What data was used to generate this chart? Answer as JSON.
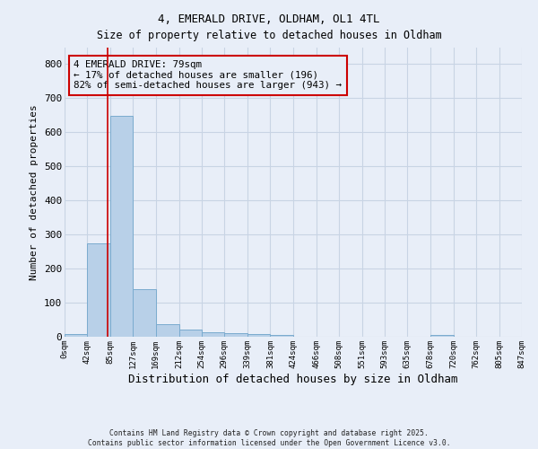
{
  "title": "4, EMERALD DRIVE, OLDHAM, OL1 4TL",
  "subtitle": "Size of property relative to detached houses in Oldham",
  "xlabel": "Distribution of detached houses by size in Oldham",
  "ylabel": "Number of detached properties",
  "bar_values": [
    8,
    275,
    648,
    140,
    38,
    20,
    12,
    10,
    8,
    5,
    0,
    0,
    0,
    0,
    0,
    0,
    4,
    0,
    0,
    0
  ],
  "bin_edges": [
    0,
    42,
    85,
    127,
    169,
    212,
    254,
    296,
    339,
    381,
    424,
    466,
    508,
    551,
    593,
    635,
    678,
    720,
    762,
    805,
    847
  ],
  "tick_labels": [
    "0sqm",
    "42sqm",
    "85sqm",
    "127sqm",
    "169sqm",
    "212sqm",
    "254sqm",
    "296sqm",
    "339sqm",
    "381sqm",
    "424sqm",
    "466sqm",
    "508sqm",
    "551sqm",
    "593sqm",
    "635sqm",
    "678sqm",
    "720sqm",
    "762sqm",
    "805sqm",
    "847sqm"
  ],
  "bar_color": "#b8d0e8",
  "bar_edge_color": "#7aabcf",
  "property_line_x": 79,
  "property_line_color": "#cc0000",
  "annotation_line1": "4 EMERALD DRIVE: 79sqm",
  "annotation_line2": "← 17% of detached houses are smaller (196)",
  "annotation_line3": "82% of semi-detached houses are larger (943) →",
  "annotation_box_color": "#cc0000",
  "ylim": [
    0,
    850
  ],
  "yticks": [
    0,
    100,
    200,
    300,
    400,
    500,
    600,
    700,
    800
  ],
  "grid_color": "#c8d4e4",
  "background_color": "#e8eef8",
  "footer_line1": "Contains HM Land Registry data © Crown copyright and database right 2025.",
  "footer_line2": "Contains public sector information licensed under the Open Government Licence v3.0."
}
